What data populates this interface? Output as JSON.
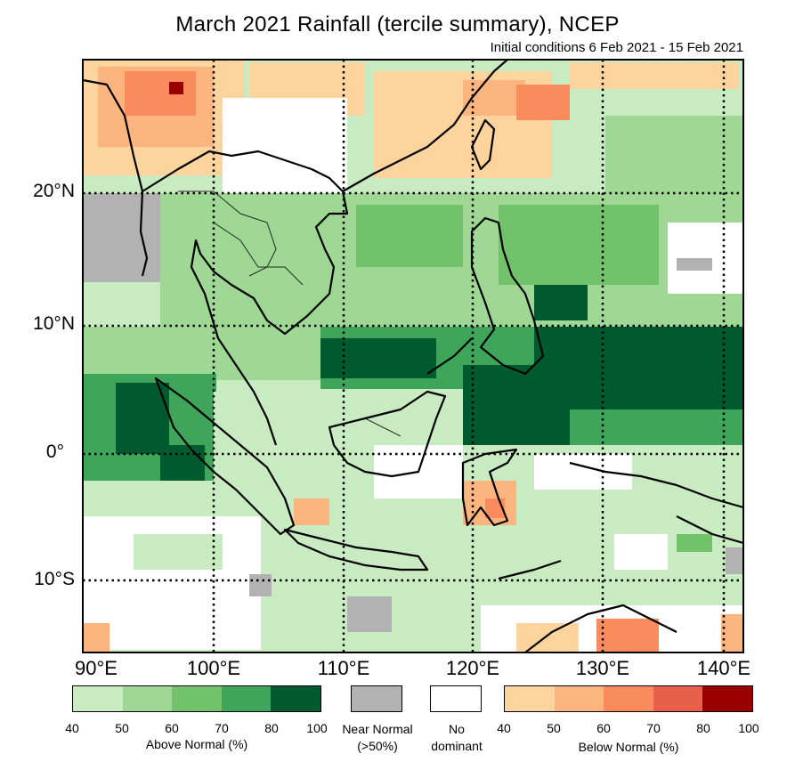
{
  "title": "March 2021 Rainfall (tercile summary), NCEP",
  "subtitle": "Initial conditions 6 Feb 2021 - 15 Feb 2021",
  "latitude_labels": [
    "20°N",
    "10°N",
    "0°",
    "10°S"
  ],
  "longitude_labels": [
    "90°E",
    "100°E",
    "110°E",
    "120°E",
    "130°E",
    "140°E"
  ],
  "legend": {
    "above_normal": {
      "caption": "Above Normal (%)",
      "ticks": [
        "40",
        "50",
        "60",
        "70",
        "80",
        "100"
      ],
      "colors": [
        "#c9ebc2",
        "#9fd895",
        "#72c26c",
        "#3ea55a",
        "#005a30"
      ]
    },
    "near_normal": {
      "caption": "Near Normal (>50%)",
      "line1": "Near Normal",
      "line2": "(>50%)",
      "color": "#b2b2b2"
    },
    "no_dominant": {
      "caption": "No dominant",
      "line1": "No",
      "line2": "dominant",
      "color": "#ffffff"
    },
    "below_normal": {
      "caption": "Below Normal (%)",
      "ticks": [
        "40",
        "50",
        "60",
        "70",
        "80",
        "100"
      ],
      "colors": [
        "#fdd49e",
        "#fdb580",
        "#f98b5d",
        "#e8604a",
        "#990000"
      ]
    }
  },
  "map_data": {
    "lon_range": [
      90,
      141
    ],
    "lat_range": [
      -15,
      30
    ],
    "grid_lon": [
      90,
      100,
      110,
      120,
      130,
      140
    ],
    "grid_lat": [
      20,
      10,
      0,
      -10
    ]
  }
}
